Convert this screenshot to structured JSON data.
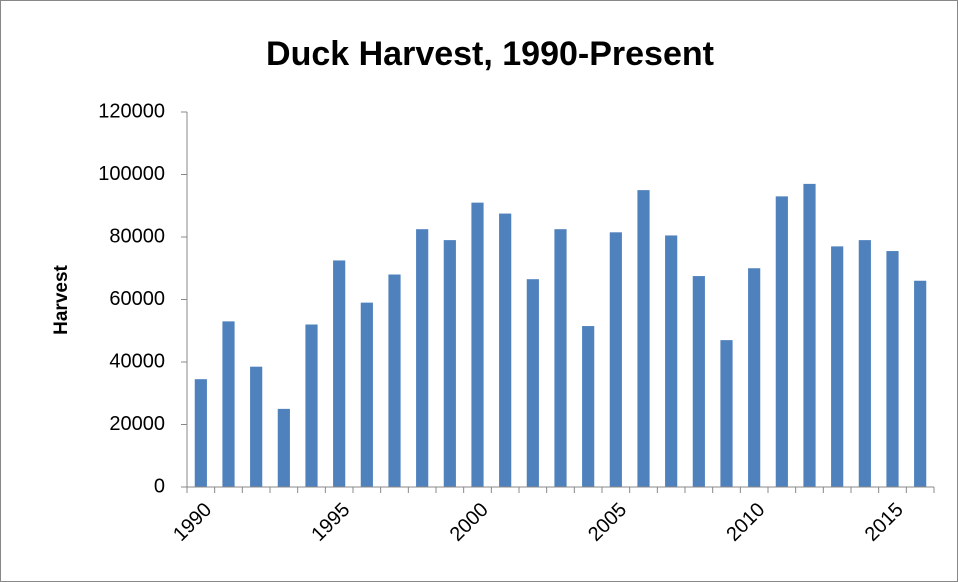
{
  "chart_data": {
    "type": "bar",
    "title": "Duck Harvest, 1990-Present",
    "y_label": "Harvest",
    "categories": [
      "1990",
      null,
      null,
      null,
      null,
      "1995",
      null,
      null,
      null,
      null,
      "2000",
      null,
      null,
      null,
      null,
      "2005",
      null,
      null,
      null,
      null,
      "2010",
      null,
      null,
      null,
      null,
      "2015",
      null
    ],
    "values": [
      34500,
      53000,
      38500,
      25000,
      52000,
      72500,
      59000,
      68000,
      82500,
      79000,
      91000,
      87500,
      66500,
      82500,
      51500,
      81500,
      95000,
      80500,
      67500,
      47000,
      70000,
      93000,
      97000,
      77000,
      79000,
      75500,
      66000
    ],
    "color": "#4f81bd",
    "ylim": [
      0,
      120000
    ],
    "yticks": [
      0,
      20000,
      40000,
      60000,
      80000,
      100000,
      120000
    ],
    "grid": false
  }
}
